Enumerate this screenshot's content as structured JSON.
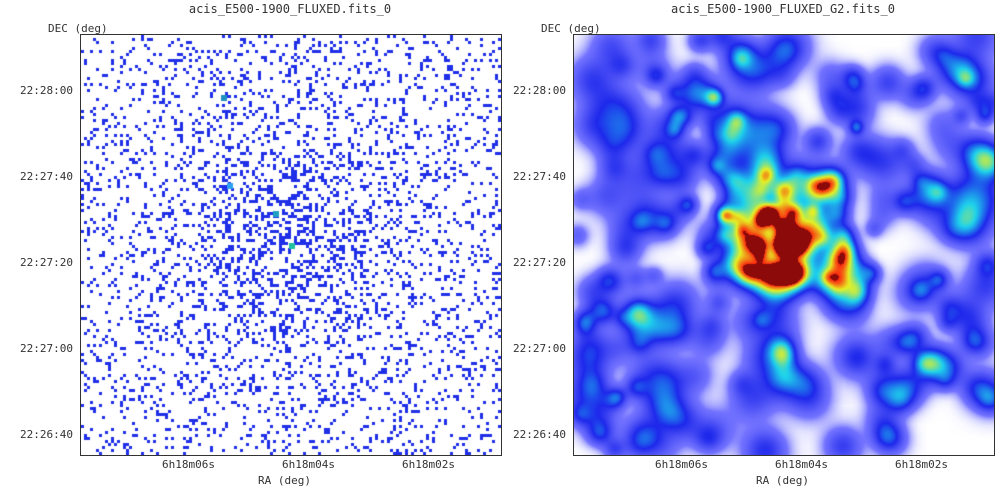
{
  "left_panel": {
    "title": "acis_E500-1900_FLUXED.fits_0",
    "ylabel": "DEC (deg)",
    "xlabel": "RA (deg)",
    "yticks": [
      "22:28:00",
      "22:27:40",
      "22:27:20",
      "22:27:00",
      "22:26:40"
    ],
    "xticks": [
      "6h18m06s",
      "6h18m04s",
      "6h18m02s"
    ]
  },
  "right_panel": {
    "title": "acis_E500-1900_FLUXED_G2.fits_0",
    "ylabel": "DEC (deg)",
    "xlabel": "RA (deg)",
    "yticks": [
      "22:28:00",
      "22:27:40",
      "22:27:20",
      "22:27:00",
      "22:26:40"
    ],
    "xticks": [
      "6h18m06s",
      "6h18m04s",
      "6h18m02s"
    ]
  },
  "colors": {
    "pixel_blue": "#1f2fe8",
    "smooth_base": "#2030e0",
    "hot_red": "#e01010",
    "hot_yellow": "#f0f020",
    "cyan": "#20c0f0"
  }
}
